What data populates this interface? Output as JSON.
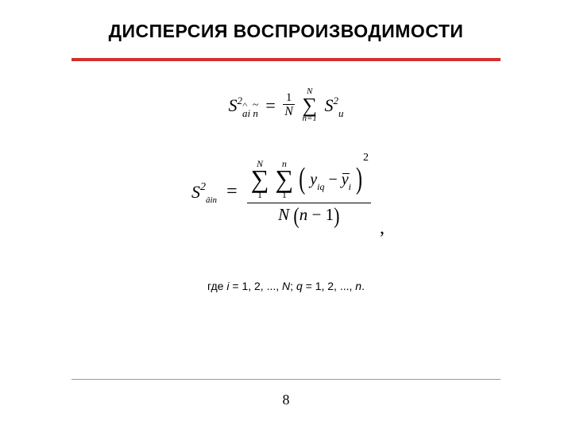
{
  "title": "ДИСПЕРСИЯ ВОСПРОИЗВОДИМОСТИ",
  "page_number": "8",
  "colors": {
    "accent_red": "#d32f2f",
    "footer_rule": "#999999",
    "text": "#000000",
    "background": "#ffffff"
  },
  "eq1": {
    "lhs_S": "S",
    "lhs_sup": "2",
    "lhs_sub1": "a",
    "lhs_sub2": "i",
    "lhs_sub3": "n",
    "equals": "=",
    "frac_num": "1",
    "frac_den": "N",
    "sum_upper": "N",
    "sum_sigma": "∑",
    "sum_lower": "n=1",
    "rhs_S": "S",
    "rhs_sup": "2",
    "rhs_sub": "u"
  },
  "eq2": {
    "lhs_S": "S",
    "lhs_sup": "2",
    "lhs_sub": "âin",
    "equals": "=",
    "sum1_upper": "N",
    "sum1_sigma": "∑",
    "sum1_lower": "1",
    "sum2_upper": "n",
    "sum2_sigma": "∑",
    "sum2_lower": "1",
    "paren_open": "(",
    "term_y": "y",
    "term_y_sub": "iq",
    "minus": " − ",
    "term_ybar": "y",
    "term_ybar_sub": "i",
    "paren_close": ")",
    "power": "2",
    "den_N": "N",
    "den_open": "(",
    "den_n": "n",
    "den_minus": " − ",
    "den_one": "1",
    "den_close": ")",
    "trailing_comma": ","
  },
  "caption": {
    "prefix": "где  ",
    "i": "i",
    "eq": " = 1, 2, ..., ",
    "N": "N",
    "sep": ";  ",
    "q": "q",
    "eq2": " = 1, 2, ..., ",
    "n": "n",
    "dot": "."
  }
}
